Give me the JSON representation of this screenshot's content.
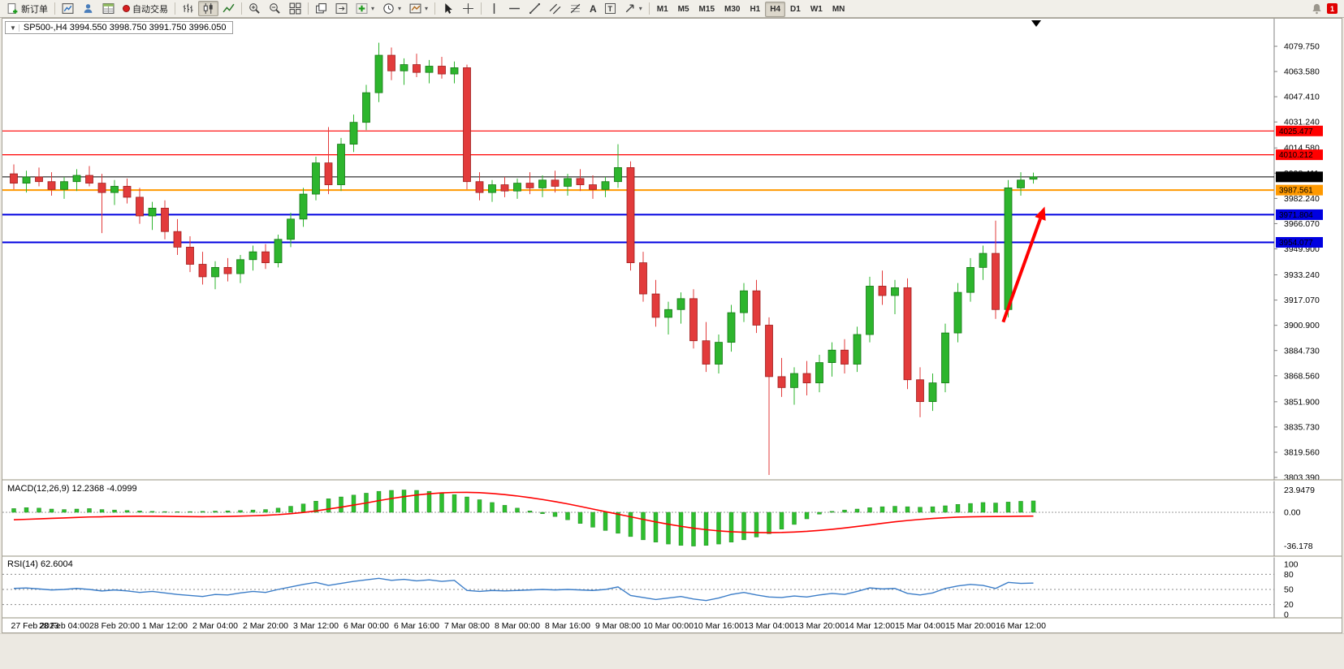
{
  "window": {
    "title_overlay": "SP500-,H4 3994.550 3998.750 3991.750 3996.050"
  },
  "symbol": {
    "name": "SP500-",
    "period": "H4",
    "open": "3994.550",
    "high": "3998.750",
    "low": "3991.750",
    "close": "3996.050"
  },
  "toolbar": {
    "new_order_label": "新订单",
    "auto_trading_label": "自动交易",
    "text_tool_label": "A",
    "text_label_tool_label": "T",
    "timeframes": [
      "M1",
      "M5",
      "M15",
      "M30",
      "H1",
      "H4",
      "D1",
      "W1",
      "MN"
    ],
    "active_timeframe": "H4",
    "notification_badge": "1"
  },
  "indicators": {
    "macd": {
      "label": "MACD(12,26,9) 12.2368 -4.0999"
    },
    "rsi": {
      "label": "RSI(14) 62.6004"
    }
  },
  "colors": {
    "candle_up": "#2DB52D",
    "candle_up_border": "#157815",
    "candle_down": "#E23B3B",
    "candle_down_border": "#9E1F1F",
    "macd_histogram": "#2FBF2F",
    "macd_signal": "#FF0000",
    "rsi_line": "#3B7DC8",
    "level_red": "#FF0000",
    "level_blue": "#0000E0",
    "level_orange": "#FF9900",
    "current_price": "#000000",
    "arrow": "#FF0000"
  },
  "chart_data": {
    "type": "candlestick",
    "title": "SP500-,H4",
    "timeframe_hours": 4,
    "label_every_n_candles": 4,
    "y_axis_ticks": [
      "4079.750",
      "4063.580",
      "4047.410",
      "4031.240",
      "4014.580",
      "3998.411",
      "3982.240",
      "3966.070",
      "3949.900",
      "3933.240",
      "3917.070",
      "3900.900",
      "3884.730",
      "3868.560",
      "3851.900",
      "3835.730",
      "3819.560",
      "3803.390"
    ],
    "x_labels": [
      "27 Feb 2023",
      "28 Feb 04:00",
      "28 Feb 20:00",
      "1 Mar 12:00",
      "2 Mar 04:00",
      "2 Mar 20:00",
      "3 Mar 12:00",
      "6 Mar 00:00",
      "6 Mar 16:00",
      "7 Mar 08:00",
      "8 Mar 00:00",
      "8 Mar 16:00",
      "9 Mar 08:00",
      "10 Mar 00:00",
      "10 Mar 16:00",
      "13 Mar 04:00",
      "13 Mar 20:00",
      "14 Mar 12:00",
      "15 Mar 04:00",
      "15 Mar 20:00",
      "16 Mar 12:00"
    ],
    "levels": [
      {
        "label": "4025.477",
        "value": 4025.477,
        "color": "#FF0000",
        "kind": "resistance-line"
      },
      {
        "label": "4010.212",
        "value": 4010.212,
        "color": "#FF0000",
        "kind": "resistance-line"
      },
      {
        "label": "3996.050",
        "value": 3996.05,
        "color": "#000000",
        "kind": "current-price"
      },
      {
        "label": "3987.561",
        "value": 3987.561,
        "color": "#FF9900",
        "kind": "pivot-line"
      },
      {
        "label": "3971.804",
        "value": 3971.804,
        "color": "#0000E0",
        "kind": "support-line"
      },
      {
        "label": "3954.077",
        "value": 3954.077,
        "color": "#0000E0",
        "kind": "support-line"
      }
    ],
    "candles": [
      [
        3998,
        4004,
        3988,
        3992
      ],
      [
        3992,
        4000,
        3986,
        3996
      ],
      [
        3996,
        4002,
        3990,
        3993
      ],
      [
        3993,
        3999,
        3984,
        3988
      ],
      [
        3988,
        3996,
        3982,
        3993
      ],
      [
        3993,
        4001,
        3987,
        3997
      ],
      [
        3997,
        4003,
        3990,
        3992
      ],
      [
        3992,
        3998,
        3960,
        3986
      ],
      [
        3986,
        3994,
        3978,
        3990
      ],
      [
        3990,
        3995,
        3979,
        3983
      ],
      [
        3983,
        3989,
        3966,
        3971
      ],
      [
        3971,
        3980,
        3962,
        3976
      ],
      [
        3976,
        3981,
        3956,
        3961
      ],
      [
        3961,
        3969,
        3946,
        3951
      ],
      [
        3951,
        3958,
        3935,
        3940
      ],
      [
        3940,
        3948,
        3927,
        3932
      ],
      [
        3932,
        3942,
        3924,
        3938
      ],
      [
        3938,
        3944,
        3929,
        3934
      ],
      [
        3934,
        3946,
        3928,
        3943
      ],
      [
        3943,
        3952,
        3936,
        3948
      ],
      [
        3948,
        3953,
        3937,
        3941
      ],
      [
        3941,
        3959,
        3938,
        3956
      ],
      [
        3956,
        3973,
        3951,
        3969
      ],
      [
        3969,
        3989,
        3964,
        3985
      ],
      [
        3985,
        4009,
        3981,
        4005
      ],
      [
        4005,
        4028,
        3985,
        3991
      ],
      [
        3991,
        4021,
        3987,
        4017
      ],
      [
        4017,
        4036,
        4012,
        4031
      ],
      [
        4031,
        4055,
        4026,
        4050
      ],
      [
        4050,
        4082,
        4044,
        4074
      ],
      [
        4074,
        4079,
        4058,
        4064
      ],
      [
        4064,
        4072,
        4055,
        4068
      ],
      [
        4068,
        4075,
        4060,
        4063
      ],
      [
        4063,
        4071,
        4056,
        4067
      ],
      [
        4067,
        4073,
        4059,
        4062
      ],
      [
        4062,
        4070,
        4056,
        4066
      ],
      [
        4066,
        4068,
        3988,
        3993
      ],
      [
        3993,
        3999,
        3981,
        3986
      ],
      [
        3986,
        3994,
        3980,
        3991
      ],
      [
        3991,
        3996,
        3983,
        3987
      ],
      [
        3987,
        3995,
        3982,
        3992
      ],
      [
        3992,
        3999,
        3985,
        3989
      ],
      [
        3989,
        3997,
        3983,
        3994
      ],
      [
        3994,
        4000,
        3986,
        3990
      ],
      [
        3990,
        3998,
        3984,
        3995
      ],
      [
        3995,
        4001,
        3987,
        3991
      ],
      [
        3991,
        3997,
        3982,
        3988
      ],
      [
        3988,
        3996,
        3983,
        3993
      ],
      [
        3993,
        4017,
        3989,
        4002
      ],
      [
        4002,
        4006,
        3936,
        3941
      ],
      [
        3941,
        3948,
        3916,
        3921
      ],
      [
        3921,
        3930,
        3900,
        3906
      ],
      [
        3906,
        3916,
        3895,
        3911
      ],
      [
        3911,
        3922,
        3902,
        3918
      ],
      [
        3918,
        3924,
        3886,
        3891
      ],
      [
        3891,
        3903,
        3871,
        3876
      ],
      [
        3876,
        3895,
        3870,
        3890
      ],
      [
        3890,
        3914,
        3884,
        3909
      ],
      [
        3909,
        3928,
        3903,
        3923
      ],
      [
        3923,
        3930,
        3896,
        3901
      ],
      [
        3901,
        3906,
        3805,
        3868
      ],
      [
        3868,
        3880,
        3855,
        3861
      ],
      [
        3861,
        3874,
        3850,
        3870
      ],
      [
        3870,
        3878,
        3856,
        3864
      ],
      [
        3864,
        3882,
        3858,
        3877
      ],
      [
        3877,
        3890,
        3868,
        3885
      ],
      [
        3885,
        3892,
        3870,
        3876
      ],
      [
        3876,
        3900,
        3871,
        3895
      ],
      [
        3895,
        3932,
        3890,
        3926
      ],
      [
        3926,
        3936,
        3914,
        3920
      ],
      [
        3920,
        3930,
        3908,
        3925
      ],
      [
        3925,
        3931,
        3860,
        3866
      ],
      [
        3866,
        3874,
        3842,
        3852
      ],
      [
        3852,
        3870,
        3846,
        3864
      ],
      [
        3864,
        3902,
        3858,
        3896
      ],
      [
        3896,
        3928,
        3890,
        3922
      ],
      [
        3922,
        3944,
        3916,
        3938
      ],
      [
        3938,
        3952,
        3930,
        3947
      ],
      [
        3947,
        3968,
        3905,
        3911
      ],
      [
        3911,
        3994,
        3906,
        3989
      ],
      [
        3989,
        3999,
        3984,
        3994
      ],
      [
        3994.55,
        3998.75,
        3991.75,
        3996.05
      ]
    ],
    "macd": {
      "params": "12,26,9",
      "value": 12.2368,
      "signal_value": -4.0999,
      "scale_labels": [
        "23.9479",
        "0.00",
        "-36.178"
      ],
      "histogram": [
        4,
        5,
        4.5,
        3.5,
        3,
        3.5,
        4,
        3,
        2.5,
        2,
        1.5,
        1,
        0.8,
        0.6,
        0.8,
        1,
        1.3,
        1.6,
        2,
        2.5,
        3,
        4.5,
        6.5,
        9,
        12,
        14.5,
        16.5,
        18.5,
        20.5,
        22.5,
        23.5,
        23.9479,
        23.5,
        22.5,
        21,
        19,
        16.5,
        13.5,
        10.5,
        7.5,
        4.5,
        1.5,
        -1.5,
        -4.5,
        -8,
        -12,
        -16,
        -19.5,
        -22.5,
        -26,
        -29.5,
        -32,
        -34,
        -35.5,
        -36.178,
        -35.5,
        -34,
        -32,
        -29.5,
        -26.5,
        -23,
        -18,
        -13,
        -7,
        -2,
        1,
        2.5,
        3.5,
        5,
        6,
        6.5,
        6,
        5.5,
        6,
        7,
        8.5,
        9.5,
        10.5,
        10,
        11,
        11.8,
        12.2368
      ],
      "signal": [
        -8,
        -7.5,
        -7,
        -6.5,
        -6,
        -5.5,
        -5,
        -4.8,
        -4.5,
        -4.3,
        -4.2,
        -4.2,
        -4.3,
        -4.5,
        -4.6,
        -4.7,
        -4.6,
        -4.4,
        -4.1,
        -3.7,
        -3.2,
        -2.5,
        -1.5,
        -0.2,
        1.5,
        3.5,
        5.5,
        7.8,
        10,
        12.5,
        14.8,
        16.8,
        18.5,
        19.8,
        20.8,
        21.3,
        21.4,
        21,
        20.2,
        19,
        17.5,
        15.7,
        13.7,
        11.5,
        9,
        6.3,
        3.5,
        0.7,
        -2,
        -4.8,
        -7.6,
        -10.3,
        -12.8,
        -15,
        -17,
        -18.6,
        -19.9,
        -20.8,
        -21.4,
        -21.7,
        -21.8,
        -21.6,
        -21.1,
        -20.4,
        -19.4,
        -18.2,
        -16.8,
        -15.2,
        -13.5,
        -11.8,
        -10.2,
        -8.8,
        -7.6,
        -6.6,
        -5.8,
        -5.2,
        -4.8,
        -4.6,
        -4.5,
        -4.4,
        -4.2,
        -4.0999
      ]
    },
    "rsi": {
      "period": 14,
      "value": 62.6004,
      "scale_labels": [
        "100",
        "80",
        "50",
        "20",
        "0"
      ],
      "level_lines": [
        80,
        50,
        20
      ],
      "values": [
        52,
        53,
        51,
        49,
        50,
        52,
        50,
        47,
        49,
        47,
        44,
        46,
        43,
        40,
        38,
        36,
        40,
        39,
        43,
        46,
        44,
        50,
        55,
        60,
        64,
        58,
        62,
        66,
        69,
        72,
        68,
        70,
        67,
        69,
        66,
        68,
        48,
        46,
        48,
        47,
        48,
        49,
        50,
        49,
        50,
        49,
        48,
        50,
        55,
        38,
        34,
        30,
        33,
        36,
        31,
        28,
        33,
        40,
        44,
        39,
        35,
        34,
        37,
        35,
        39,
        42,
        40,
        46,
        53,
        51,
        52,
        42,
        39,
        43,
        52,
        57,
        60,
        58,
        52,
        64,
        62,
        62.6004
      ]
    },
    "annotation_arrow": {
      "from": {
        "candle_index": 78.6,
        "price": 3903
      },
      "to": {
        "candle_index": 81.9,
        "price": 3977
      },
      "color": "#FF0000"
    }
  }
}
